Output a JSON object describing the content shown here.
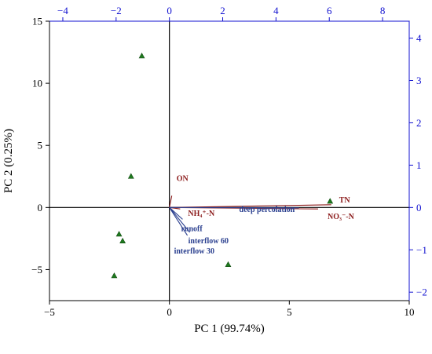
{
  "chart_data": {
    "type": "scatter",
    "subtype": "PCA biplot",
    "xlabel": "PC 1 (99.74%)",
    "ylabel": "PC 2 (0.25%)",
    "xlim": [
      -5,
      10
    ],
    "ylim": [
      -7.5,
      15
    ],
    "x_ticks": [
      -5,
      0,
      5,
      10
    ],
    "y_ticks": [
      -5,
      0,
      5,
      10,
      15
    ],
    "top_axis": {
      "lim": [
        -4.5,
        9
      ],
      "ticks": [
        -4,
        -2,
        0,
        2,
        4,
        6,
        8
      ],
      "color": "#1010d0"
    },
    "right_axis": {
      "lim": [
        -2.2,
        4.4
      ],
      "ticks": [
        -2,
        -1,
        0,
        1,
        2,
        3,
        4
      ],
      "color": "#1010d0"
    },
    "scores": {
      "marker": "triangle",
      "color": "#1e7a1e",
      "points": [
        {
          "x": -1.15,
          "y": 12.2
        },
        {
          "x": -1.6,
          "y": 2.5
        },
        {
          "x": -2.1,
          "y": -2.15
        },
        {
          "x": -1.95,
          "y": -2.7
        },
        {
          "x": -2.3,
          "y": -5.5
        },
        {
          "x": 2.45,
          "y": -4.6
        },
        {
          "x": 6.7,
          "y": 0.5
        }
      ]
    },
    "loadings": [
      {
        "label": "TN",
        "x": 6.75,
        "y": 0.22,
        "color": "#8b1a1a"
      },
      {
        "label": "NO₃⁻-N",
        "x": 6.2,
        "y": -0.12,
        "color": "#8b1a1a"
      },
      {
        "label": "ON",
        "x": 0.1,
        "y": 0.95,
        "color": "#8b1a1a"
      },
      {
        "label": "NH₄⁺-N",
        "x": 0.45,
        "y": -0.12,
        "color": "#8b1a1a"
      },
      {
        "label": "deep percolation",
        "x": 5.4,
        "y": -0.03,
        "color": "#2a3f8f"
      },
      {
        "label": "runoff",
        "x": 0.55,
        "y": -0.95,
        "color": "#2a3f8f"
      },
      {
        "label": "interflow 60",
        "x": 0.85,
        "y": -2.0,
        "color": "#2a3f8f"
      },
      {
        "label": "interflow 30",
        "x": 0.75,
        "y": -2.25,
        "color": "#2a3f8f"
      }
    ]
  }
}
